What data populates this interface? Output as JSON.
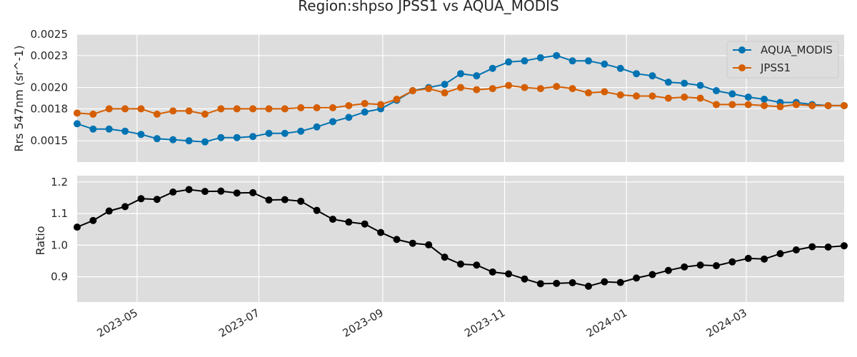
{
  "title": "Region:shpso JPSS1 vs AQUA_MODIS",
  "colors": {
    "background": "#dddddd",
    "grid": "#ffffff",
    "aqua": "#0173b2",
    "jpss": "#d55e00",
    "ratio": "#000000"
  },
  "chart_data": [
    {
      "type": "line",
      "ylabel": "Rrs 547nm (sr^-1)",
      "ylim": [
        0.0013,
        0.0025
      ],
      "yticks": [
        0.0015,
        0.0018,
        0.002,
        0.0023,
        0.0025
      ],
      "ytick_labels": [
        "0.0015",
        "0.0018",
        "0.0020",
        "0.0023",
        "0.0025"
      ],
      "grid": true,
      "legend": "top-right",
      "x": [
        "2023-04-01",
        "2023-04-09",
        "2023-04-17",
        "2023-04-25",
        "2023-05-03",
        "2023-05-11",
        "2023-05-19",
        "2023-05-27",
        "2023-06-04",
        "2023-06-12",
        "2023-06-20",
        "2023-06-28",
        "2023-07-06",
        "2023-07-14",
        "2023-07-22",
        "2023-07-30",
        "2023-08-07",
        "2023-08-15",
        "2023-08-23",
        "2023-08-31",
        "2023-09-08",
        "2023-09-16",
        "2023-09-24",
        "2023-10-02",
        "2023-10-10",
        "2023-10-18",
        "2023-10-26",
        "2023-11-03",
        "2023-11-11",
        "2023-11-19",
        "2023-11-27",
        "2023-12-05",
        "2023-12-13",
        "2023-12-21",
        "2023-12-29",
        "2024-01-06",
        "2024-01-14",
        "2024-01-22",
        "2024-01-30",
        "2024-02-07",
        "2024-02-15",
        "2024-02-23",
        "2024-03-02",
        "2024-03-10",
        "2024-03-18",
        "2024-03-26",
        "2024-04-03",
        "2024-04-11",
        "2024-04-19"
      ],
      "series": [
        {
          "name": "AQUA_MODIS",
          "color": "#0173b2",
          "values": [
            0.00166,
            0.00161,
            0.00161,
            0.00159,
            0.00156,
            0.00152,
            0.00151,
            0.0015,
            0.00149,
            0.00153,
            0.00153,
            0.00154,
            0.00157,
            0.00157,
            0.00159,
            0.00163,
            0.00168,
            0.00172,
            0.00177,
            0.0018,
            0.00188,
            0.00197,
            0.002,
            0.00203,
            0.00213,
            0.00211,
            0.00218,
            0.00224,
            0.00225,
            0.00228,
            0.0023,
            0.00225,
            0.00225,
            0.00222,
            0.00218,
            0.00213,
            0.00211,
            0.00205,
            0.00204,
            0.00202,
            0.00197,
            0.00194,
            0.00191,
            0.00189,
            0.00186,
            0.00186,
            0.00184,
            0.00183,
            0.00183
          ]
        },
        {
          "name": "JPSS1",
          "color": "#d55e00",
          "values": [
            0.00176,
            0.00175,
            0.0018,
            0.0018,
            0.0018,
            0.00175,
            0.00178,
            0.00178,
            0.00175,
            0.0018,
            0.0018,
            0.0018,
            0.0018,
            0.0018,
            0.00181,
            0.00181,
            0.00181,
            0.00183,
            0.00185,
            0.00184,
            0.00189,
            0.00197,
            0.00199,
            0.00195,
            0.002,
            0.00198,
            0.00199,
            0.00202,
            0.002,
            0.00199,
            0.00201,
            0.00199,
            0.00195,
            0.00196,
            0.00193,
            0.00192,
            0.00192,
            0.0019,
            0.00191,
            0.0019,
            0.00184,
            0.00184,
            0.00184,
            0.00183,
            0.00182,
            0.00184,
            0.00183,
            0.00183,
            0.00183
          ]
        }
      ]
    },
    {
      "type": "line",
      "ylabel": "Ratio",
      "ylim": [
        0.82,
        1.22
      ],
      "yticks": [
        0.9,
        1.0,
        1.1,
        1.2
      ],
      "ytick_labels": [
        "0.9",
        "1.0",
        "1.1",
        "1.2"
      ],
      "grid": true,
      "x": [
        "2023-04-01",
        "2023-04-09",
        "2023-04-17",
        "2023-04-25",
        "2023-05-03",
        "2023-05-11",
        "2023-05-19",
        "2023-05-27",
        "2023-06-04",
        "2023-06-12",
        "2023-06-20",
        "2023-06-28",
        "2023-07-06",
        "2023-07-14",
        "2023-07-22",
        "2023-07-30",
        "2023-08-07",
        "2023-08-15",
        "2023-08-23",
        "2023-08-31",
        "2023-09-08",
        "2023-09-16",
        "2023-09-24",
        "2023-10-02",
        "2023-10-10",
        "2023-10-18",
        "2023-10-26",
        "2023-11-03",
        "2023-11-11",
        "2023-11-19",
        "2023-11-27",
        "2023-12-05",
        "2023-12-13",
        "2023-12-21",
        "2023-12-29",
        "2024-01-06",
        "2024-01-14",
        "2024-01-22",
        "2024-01-30",
        "2024-02-07",
        "2024-02-15",
        "2024-02-23",
        "2024-03-02",
        "2024-03-10",
        "2024-03-18",
        "2024-03-26",
        "2024-04-03",
        "2024-04-11",
        "2024-04-19"
      ],
      "series": [
        {
          "color": "#000000",
          "values": [
            1.057,
            1.078,
            1.108,
            1.122,
            1.147,
            1.145,
            1.168,
            1.176,
            1.17,
            1.171,
            1.165,
            1.166,
            1.143,
            1.144,
            1.139,
            1.11,
            1.082,
            1.073,
            1.067,
            1.04,
            1.018,
            1.006,
            1.001,
            0.962,
            0.94,
            0.937,
            0.915,
            0.909,
            0.893,
            0.878,
            0.879,
            0.881,
            0.87,
            0.884,
            0.882,
            0.896,
            0.907,
            0.92,
            0.931,
            0.937,
            0.935,
            0.947,
            0.958,
            0.956,
            0.973,
            0.985,
            0.995,
            0.994,
            0.998
          ]
        }
      ]
    }
  ],
  "xaxis": {
    "xlim": [
      "2023-04-01",
      "2024-04-19"
    ],
    "ticks": [
      "2023-05-01",
      "2023-07-01",
      "2023-09-01",
      "2023-11-01",
      "2024-01-01",
      "2024-03-01"
    ],
    "tick_labels": [
      "2023-05",
      "2023-07",
      "2023-09",
      "2023-11",
      "2024-01",
      "2024-03"
    ]
  }
}
